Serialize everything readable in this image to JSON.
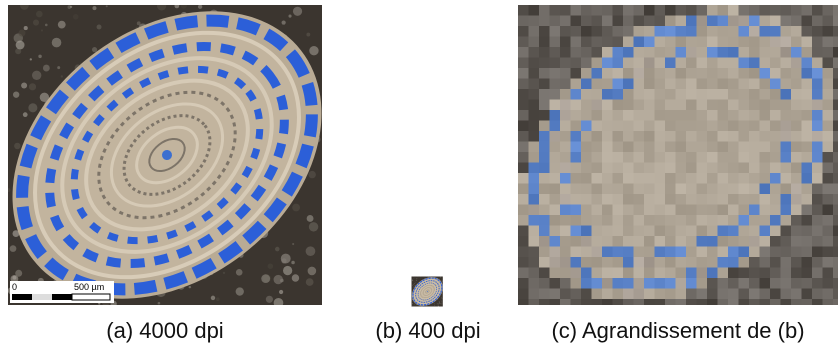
{
  "panels": [
    {
      "caption": "(a) 4000 dpi",
      "scale_bar": {
        "start": "0",
        "end": "500 µm"
      }
    },
    {
      "caption": "(b) 400 dpi"
    },
    {
      "caption": "(c) Agrandissement de (b)"
    }
  ]
}
